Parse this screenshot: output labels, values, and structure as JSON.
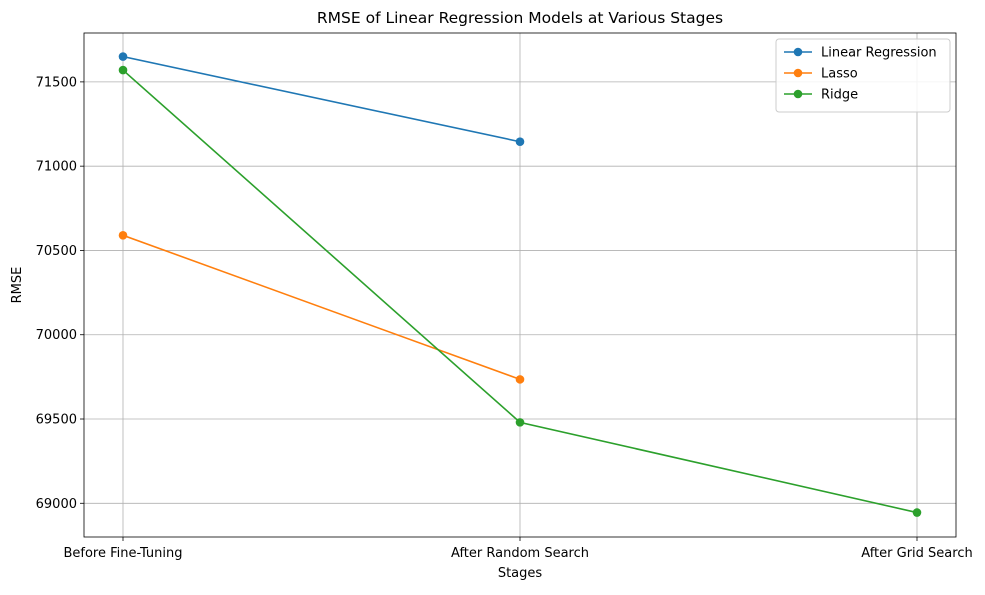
{
  "chart_data": {
    "type": "line",
    "title": "RMSE of Linear Regression Models at Various Stages",
    "xlabel": "Stages",
    "ylabel": "RMSE",
    "categories": [
      "Before Fine-Tuning",
      "After Random Search",
      "After Grid Search"
    ],
    "ylim": [
      68800,
      71790
    ],
    "yticks": [
      69000,
      69500,
      70000,
      70500,
      71000,
      71500
    ],
    "grid": true,
    "legend_position": "top-right",
    "marker": "circle",
    "series": [
      {
        "name": "Linear Regression",
        "color": "#1f77b4",
        "values": [
          71650,
          71145,
          null
        ]
      },
      {
        "name": "Lasso",
        "color": "#ff7f0e",
        "values": [
          70590,
          69735,
          null
        ]
      },
      {
        "name": "Ridge",
        "color": "#2ca02c",
        "values": [
          71570,
          69480,
          68945
        ]
      }
    ]
  }
}
